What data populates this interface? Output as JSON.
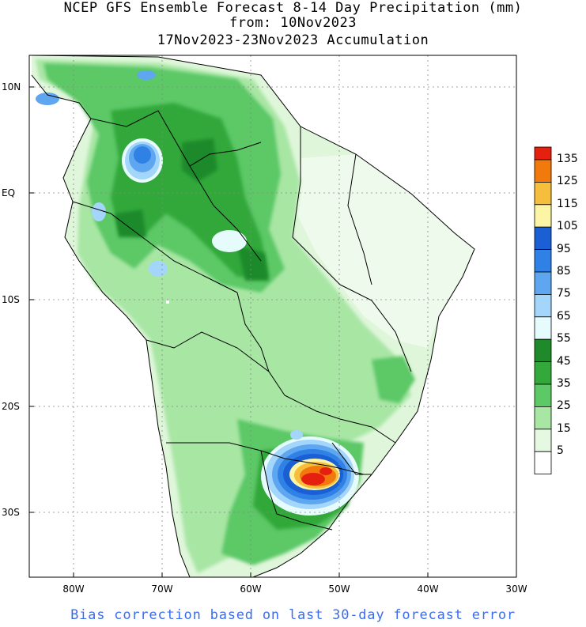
{
  "title": {
    "line1": "NCEP GFS Ensemble Forecast 8-14 Day Precipitation (mm)",
    "line2": "from: 10Nov2023",
    "line3": "17Nov2023-23Nov2023 Accumulation"
  },
  "axes": {
    "lat_labels": [
      "10N",
      "EQ",
      "10S",
      "20S",
      "30S"
    ],
    "lon_labels": [
      "80W",
      "70W",
      "60W",
      "50W",
      "40W",
      "30W"
    ]
  },
  "legend": {
    "labels": [
      "135",
      "125",
      "115",
      "105",
      "95",
      "85",
      "75",
      "65",
      "55",
      "45",
      "35",
      "25",
      "15",
      "5"
    ],
    "colors": [
      "#e5200e",
      "#f27a0c",
      "#f5be3c",
      "#fbf5a5",
      "#1a5fd4",
      "#2f81e6",
      "#5ea6f0",
      "#a4d5fa",
      "#e6fbfc",
      "#1e8a2a",
      "#33a83b",
      "#5cc866",
      "#a8e6a4",
      "#e5f8e2",
      "#ffffff"
    ]
  },
  "footer": "Bias correction based on last 30-day forecast error"
}
